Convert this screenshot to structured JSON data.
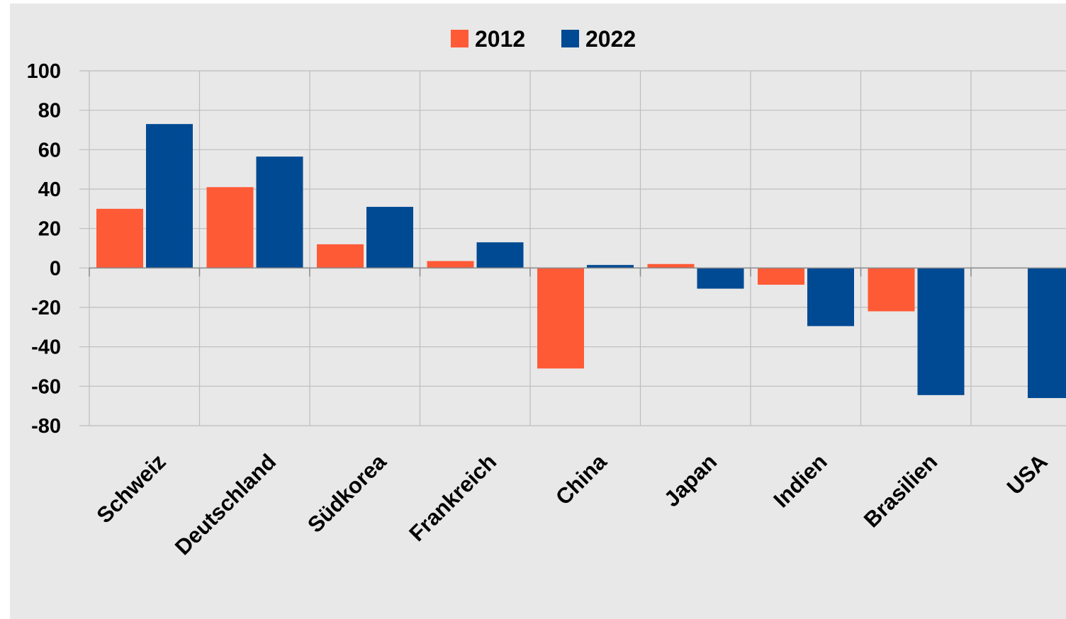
{
  "chart_data": {
    "type": "bar",
    "categories": [
      "Schweiz",
      "Deutschland",
      "Südkorea",
      "Frankreich",
      "China",
      "Japan",
      "Indien",
      "Brasilien",
      "USA"
    ],
    "series": [
      {
        "name": "2012",
        "color": "#ff5a36",
        "values": [
          30,
          41,
          12,
          3.5,
          -51,
          2,
          -8.5,
          -22,
          null
        ]
      },
      {
        "name": "2022",
        "color": "#004a93",
        "values": [
          73,
          56.5,
          31,
          13,
          1.5,
          -10.5,
          -29.5,
          -64.5,
          -66
        ]
      }
    ],
    "title": "",
    "xlabel": "",
    "ylabel": "",
    "ylim": [
      -80,
      100
    ],
    "yticks": [
      100,
      80,
      60,
      40,
      20,
      0,
      -20,
      -40,
      -60,
      -80
    ],
    "grid": true,
    "legend_position": "top-center"
  }
}
